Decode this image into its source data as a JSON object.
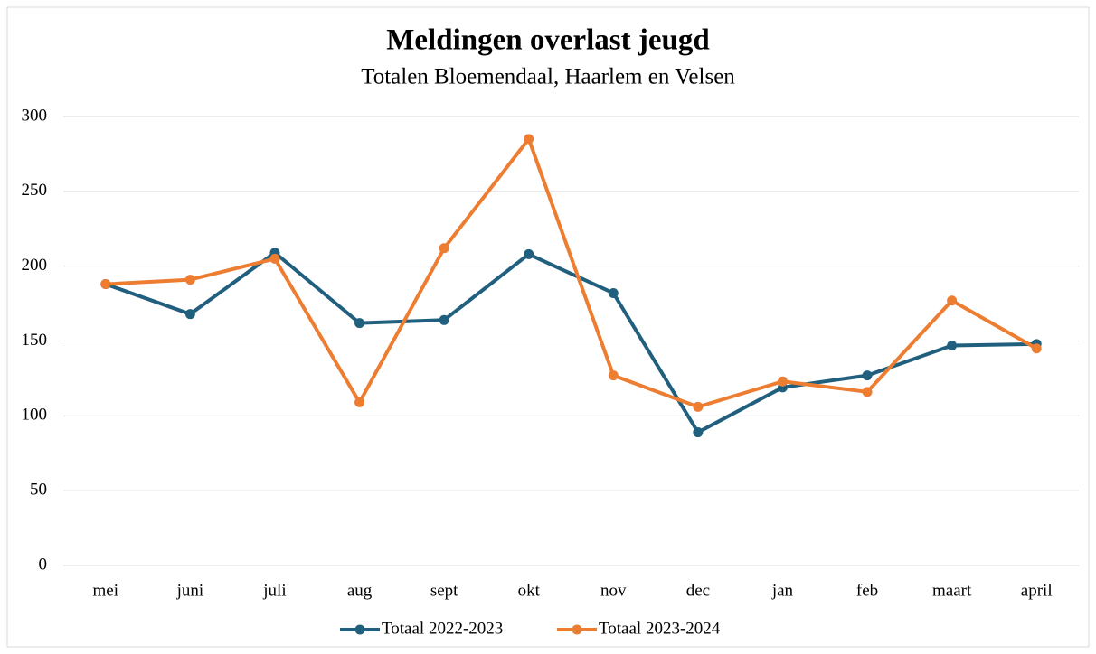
{
  "chart_data": {
    "type": "line",
    "title": "Meldingen overlast jeugd",
    "subtitle": "Totalen Bloemendaal, Haarlem en Velsen",
    "categories": [
      "mei",
      "juni",
      "juli",
      "aug",
      "sept",
      "okt",
      "nov",
      "dec",
      "jan",
      "feb",
      "maart",
      "april"
    ],
    "series": [
      {
        "name": "Totaal 2022-2023",
        "color": "#215f7e",
        "values": [
          188,
          168,
          209,
          162,
          164,
          208,
          182,
          89,
          119,
          127,
          147,
          148
        ]
      },
      {
        "name": "Totaal 2023-2024",
        "color": "#ed7d31",
        "values": [
          188,
          191,
          205,
          109,
          212,
          285,
          127,
          106,
          123,
          116,
          177,
          145
        ]
      }
    ],
    "ylim": [
      0,
      300
    ],
    "yticks": [
      0,
      50,
      100,
      150,
      200,
      250,
      300
    ],
    "grid": true,
    "legend": "bottom"
  }
}
